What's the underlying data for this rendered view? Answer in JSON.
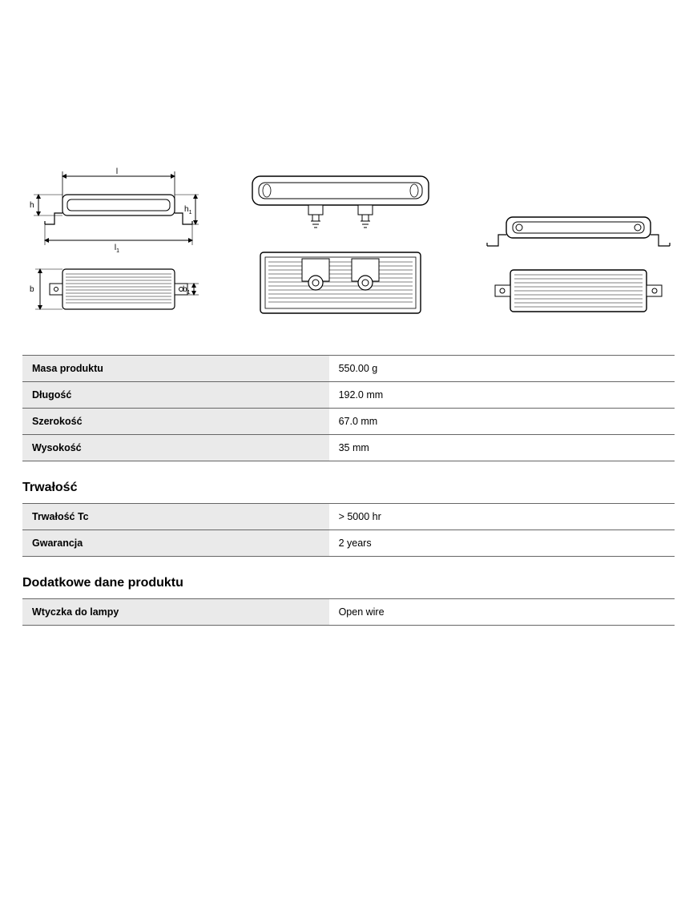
{
  "colors": {
    "stroke": "#000000",
    "row_bg": "#eaeaea",
    "border": "#666666",
    "fill_white": "#ffffff"
  },
  "diagram_labels": {
    "l": "l",
    "l1": "l",
    "l1_sub": "1",
    "h": "h",
    "h1": "h",
    "h1_sub": "1",
    "b": "b",
    "b1": "b",
    "b1_sub": "1"
  },
  "sections": [
    {
      "title": null,
      "rows": [
        {
          "k": "Masa produktu",
          "v": "550.00 g"
        },
        {
          "k": "Długość",
          "v": "192.0 mm"
        },
        {
          "k": "Szerokość",
          "v": "67.0 mm"
        },
        {
          "k": "Wysokość",
          "v": "35 mm"
        }
      ]
    },
    {
      "title": "Trwałość",
      "rows": [
        {
          "k": "Trwałość Tc",
          "v": "> 5000 hr"
        },
        {
          "k": "Gwarancja",
          "v": "2 years"
        }
      ]
    },
    {
      "title": "Dodatkowe dane produktu",
      "rows": [
        {
          "k": "Wtyczka do lampy",
          "v": "Open wire"
        }
      ]
    }
  ]
}
